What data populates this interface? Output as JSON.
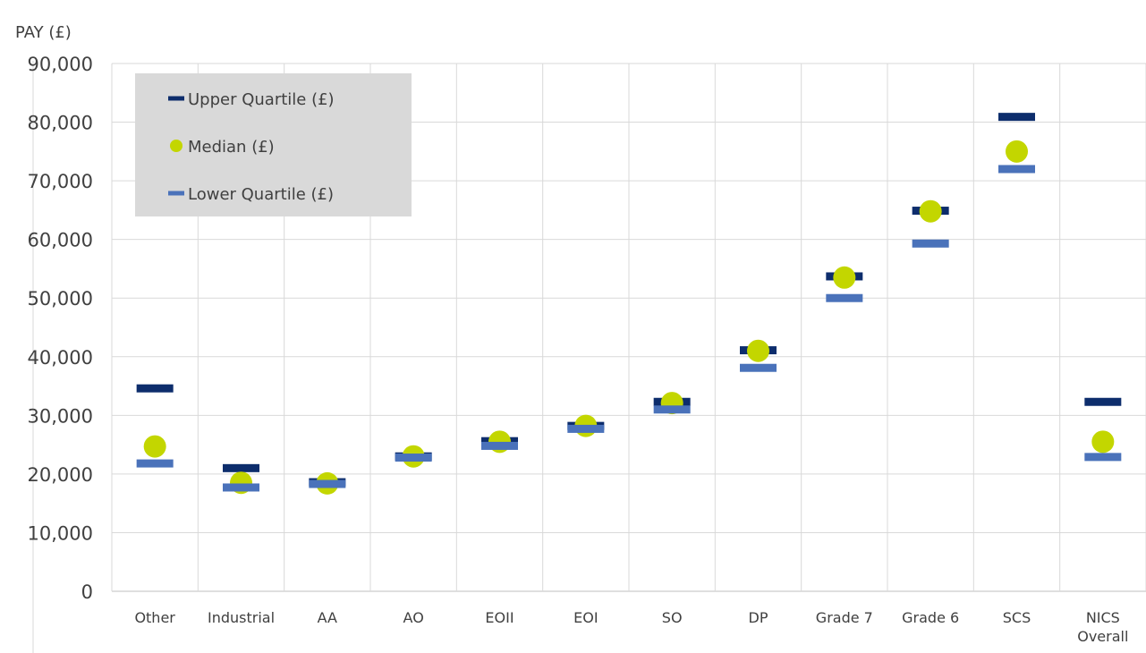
{
  "chart_data": {
    "type": "scatter",
    "ylabel": "PAY (£)",
    "ylim": [
      0,
      90000
    ],
    "ytick_step": 10000,
    "yticks": [
      "0",
      "10,000",
      "20,000",
      "30,000",
      "40,000",
      "50,000",
      "60,000",
      "70,000",
      "80,000",
      "90,000"
    ],
    "categories": [
      [
        "Other"
      ],
      [
        "Industrial"
      ],
      [
        "AA"
      ],
      [
        "AO"
      ],
      [
        "EOII"
      ],
      [
        "EOI"
      ],
      [
        "SO"
      ],
      [
        "DP"
      ],
      [
        "Grade 7"
      ],
      [
        "Grade 6"
      ],
      [
        "SCS"
      ],
      [
        "NICS",
        "Overall"
      ]
    ],
    "grid": true,
    "legend_position": "top-left",
    "series": [
      {
        "name": "Upper Quartile (£)",
        "marker": "dash",
        "color": "#0d2d6c",
        "values": [
          34600,
          21000,
          18600,
          23000,
          25600,
          28200,
          32300,
          41100,
          53700,
          64900,
          80900,
          32300
        ]
      },
      {
        "name": "Median (£)",
        "marker": "circle",
        "color": "#c3d600",
        "values": [
          24700,
          18500,
          18400,
          23000,
          25500,
          28200,
          32100,
          41000,
          53500,
          64800,
          75000,
          25500
        ]
      },
      {
        "name": "Lower Quartile (£)",
        "marker": "dash",
        "color": "#4a72ba",
        "values": [
          21800,
          17700,
          18300,
          22800,
          24800,
          27700,
          31000,
          38100,
          50000,
          59300,
          72000,
          22900
        ]
      }
    ]
  }
}
